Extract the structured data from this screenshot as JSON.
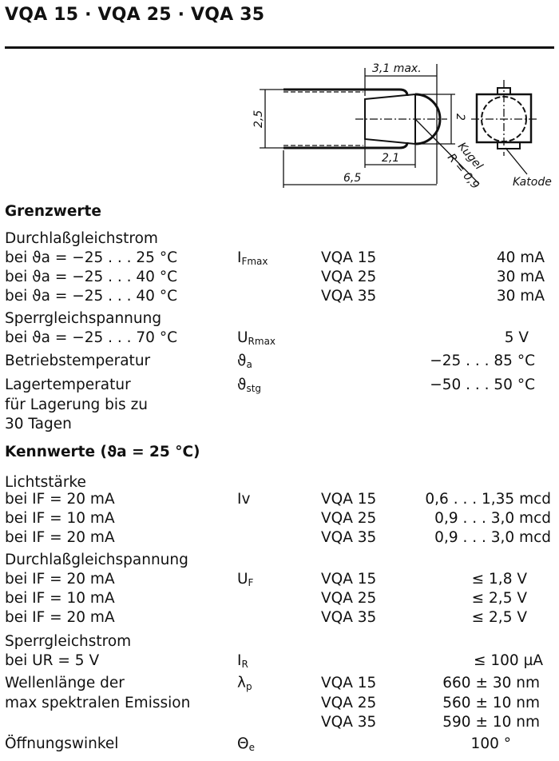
{
  "title": "VQA 15 · VQA 25 · VQA 35",
  "drawing": {
    "dim_width": "3,1 max.",
    "dim_height": "2,5",
    "dim_body": "2",
    "dim_inner": "2,1",
    "dim_total": "6,5",
    "ball_label": "Kugel",
    "ball_radius": "R = 0,9",
    "cathode_label": "Katode"
  },
  "grenzwerte": {
    "heading": "Grenzwerte",
    "forward_current": {
      "label": "Durchlaßgleichstrom",
      "symbol": "I",
      "symbol_sub": "Fmax",
      "rows": [
        {
          "cond": "bei ϑa = −25 . . . 25 °C",
          "type": "VQA 15",
          "value": "40 mA"
        },
        {
          "cond": "bei ϑa = −25 . . . 40 °C",
          "type": "VQA 25",
          "value": "30 mA"
        },
        {
          "cond": "bei ϑa = −25 . . . 40 °C",
          "type": "VQA 35",
          "value": "30 mA"
        }
      ]
    },
    "reverse_voltage": {
      "label": "Sperrgleichspannung",
      "cond": "bei ϑa = −25 . . . 70 °C",
      "symbol": "U",
      "symbol_sub": "Rmax",
      "value": "5 V"
    },
    "operating_temp": {
      "label": "Betriebstemperatur",
      "symbol": "ϑ",
      "symbol_sub": "a",
      "value": "−25 . . . 85 °C"
    },
    "storage_temp": {
      "label": "Lagertemperatur",
      "label2": "für Lagerung bis zu",
      "label3": "30 Tagen",
      "symbol": "ϑ",
      "symbol_sub": "stg",
      "value": "−50 . . . 50 °C"
    }
  },
  "kennwerte": {
    "heading": "Kennwerte (ϑa = 25 °C)",
    "luminous": {
      "label": "Lichtstärke",
      "symbol": "Iv",
      "rows": [
        {
          "cond": "bei IF = 20 mA",
          "type": "VQA 15",
          "value": "0,6 . . . 1,35 mcd"
        },
        {
          "cond": "bei IF = 10 mA",
          "type": "VQA 25",
          "value": "0,9 . . . 3,0 mcd"
        },
        {
          "cond": "bei IF = 20 mA",
          "type": "VQA 35",
          "value": "0,9 . . . 3,0 mcd"
        }
      ]
    },
    "forward_voltage": {
      "label": "Durchlaßgleichspannung",
      "symbol": "U",
      "symbol_sub": "F",
      "rows": [
        {
          "cond": "bei IF = 20 mA",
          "type": "VQA 15",
          "value": "≤ 1,8 V"
        },
        {
          "cond": "bei IF = 10 mA",
          "type": "VQA 25",
          "value": "≤ 2,5 V"
        },
        {
          "cond": "bei IF = 20 mA",
          "type": "VQA 35",
          "value": "≤ 2,5 V"
        }
      ]
    },
    "reverse_current": {
      "label": "Sperrgleichstrom",
      "cond": "bei UR = 5 V",
      "symbol": "I",
      "symbol_sub": "R",
      "value": "≤ 100 µA"
    },
    "wavelength": {
      "label": "Wellenlänge der",
      "label2": "max spektralen Emission",
      "symbol": "λ",
      "symbol_sub": "p",
      "rows": [
        {
          "type": "VQA 15",
          "value": "660 ± 30 nm"
        },
        {
          "type": "VQA 25",
          "value": "560 ± 10 nm"
        },
        {
          "type": "VQA 35",
          "value": "590 ± 10 nm"
        }
      ]
    },
    "angle": {
      "label": "Öffnungswinkel",
      "symbol": "Θ",
      "symbol_sub": "e",
      "value": "100 °"
    }
  }
}
